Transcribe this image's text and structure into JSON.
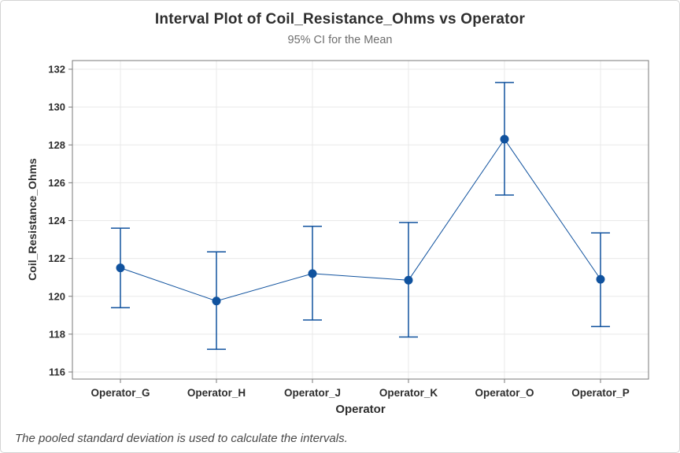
{
  "chart_data": {
    "type": "interval",
    "title": "Interval Plot of Coil_Resistance_Ohms vs Operator",
    "subtitle": "95% CI for the Mean",
    "xlabel": "Operator",
    "ylabel": "Coil_Resistance_Ohms",
    "footnote": "The pooled standard deviation is used to calculate the intervals.",
    "categories": [
      "Operator_G",
      "Operator_H",
      "Operator_J",
      "Operator_K",
      "Operator_O",
      "Operator_P"
    ],
    "series": [
      {
        "name": "Mean with 95% CI",
        "means": [
          121.5,
          119.75,
          121.2,
          120.85,
          128.3,
          120.9
        ],
        "ci_lower": [
          119.4,
          117.2,
          118.75,
          117.85,
          125.35,
          118.4
        ],
        "ci_upper": [
          123.6,
          122.35,
          123.7,
          123.9,
          131.3,
          123.35
        ]
      }
    ],
    "yticks": [
      116,
      118,
      120,
      122,
      124,
      126,
      128,
      130,
      132
    ],
    "ylim": [
      115.5,
      132.45
    ],
    "grid": "both",
    "legend": "none",
    "colors": {
      "interval_blue": "#10529E",
      "gridline": "#E9E9E9",
      "frame": "#7A7A7A",
      "text_dark": "#2E2E2E",
      "subtitle_gray": "#6E6E6E",
      "footnote_gray": "#474747",
      "card_border": "#D4D4D4",
      "background": "#FFFFFF"
    }
  }
}
